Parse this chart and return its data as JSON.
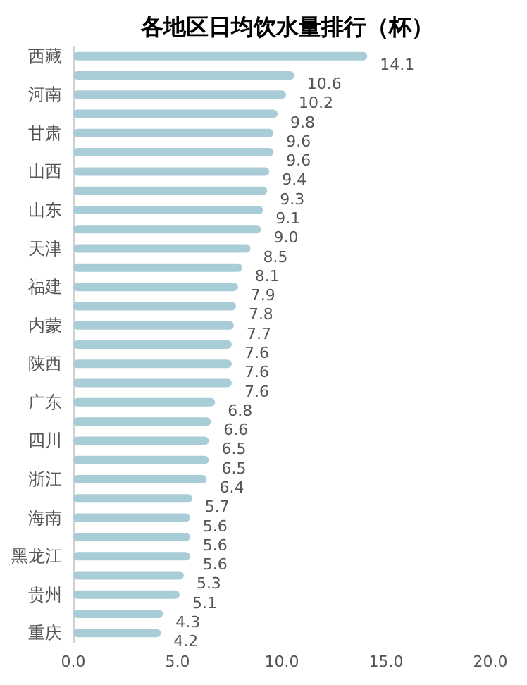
{
  "chart_data": {
    "type": "bar",
    "orientation": "horizontal",
    "title": "各地区日均饮水量排行（杯）",
    "categories": [
      "西藏",
      null,
      "河南",
      null,
      "甘肃",
      null,
      "山西",
      null,
      "山东",
      null,
      "天津",
      null,
      "福建",
      null,
      "内蒙",
      null,
      "陕西",
      null,
      "广东",
      null,
      "四川",
      null,
      "浙江",
      null,
      "海南",
      null,
      "黑龙江",
      null,
      "贵州",
      null,
      "重庆"
    ],
    "values": [
      14.1,
      10.6,
      10.2,
      9.8,
      9.6,
      9.6,
      9.4,
      9.3,
      9.1,
      9.0,
      8.5,
      8.1,
      7.9,
      7.8,
      7.7,
      7.6,
      7.6,
      7.6,
      6.8,
      6.6,
      6.5,
      6.5,
      6.4,
      5.7,
      5.6,
      5.6,
      5.6,
      5.3,
      5.1,
      4.3,
      4.2
    ],
    "value_labels": [
      "14.1",
      "10.6",
      "10.2",
      "9.8",
      "9.6",
      "9.6",
      "9.4",
      "9.3",
      "9.1",
      "9.0",
      "8.5",
      "8.1",
      "7.9",
      "7.8",
      "7.7",
      "7.6",
      "7.6",
      "7.6",
      "6.8",
      "6.6",
      "6.5",
      "6.5",
      "6.4",
      "5.7",
      "5.6",
      "5.6",
      "5.6",
      "5.3",
      "5.1",
      "4.3",
      "4.2"
    ],
    "color": "#a9cdd6",
    "xlim": [
      0,
      20
    ],
    "xticks": [
      {
        "value": 0,
        "label": "0.0"
      },
      {
        "value": 5,
        "label": "5.0"
      },
      {
        "value": 10,
        "label": "10.0"
      },
      {
        "value": 15,
        "label": "15.0"
      },
      {
        "value": 20,
        "label": "20.0"
      }
    ],
    "grid": false
  }
}
